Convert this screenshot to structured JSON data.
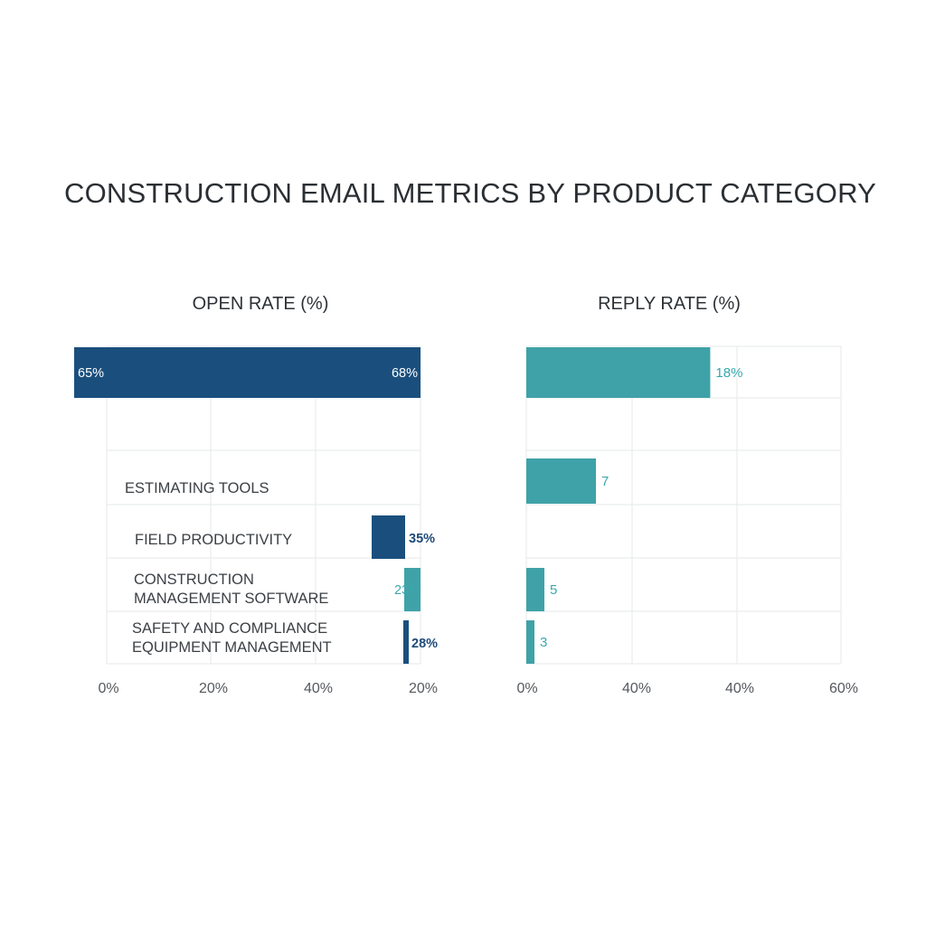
{
  "chart_data": {
    "title": "CONSTRUCTION EMAIL METRICS BY PRODUCT CATEGORY",
    "colors": {
      "open_bar": "#1a4f7d",
      "reply_bar": "#3fa2a8",
      "open_label": "#1e4a78",
      "reply_label": "#3aa8ad"
    },
    "panels": [
      {
        "type": "bar",
        "orientation": "horizontal",
        "title": "OPEN RATE (%)",
        "xlim": [
          0,
          20
        ],
        "x_tick_labels": [
          "0%",
          "20%",
          "40%",
          "20%"
        ],
        "category_labels": [
          "ESTIMATING TOOLS",
          "FIELD PRODUCTIVITY",
          [
            "CONSTRUCTION",
            "MANAGEMENT SOFTWARE"
          ],
          [
            "SAFETY AND COMPLIANCE",
            "EQUIPMENT MANAGEMENT"
          ]
        ],
        "bars": [
          {
            "value": 20,
            "start": -2,
            "label_left": "65%",
            "label_right": "68%",
            "label_inside": true
          },
          {
            "value": 20,
            "start": 20,
            "label_right": ""
          },
          {
            "value": 20,
            "start": 20,
            "label_right": ""
          },
          {
            "value": 17,
            "start": 15.9,
            "label_right": "35%",
            "label_inside": false
          },
          {
            "value": 20,
            "start": 17.1,
            "label_right": "23%",
            "label_inside": false,
            "teal": true
          },
          {
            "value": 17.6,
            "start": 17.2,
            "label_right": "28%",
            "label_inside": false
          }
        ]
      },
      {
        "type": "bar",
        "orientation": "horizontal",
        "title": "REPLY RATE (%)",
        "xlim": [
          0,
          60
        ],
        "x_tick_labels": [
          "0%",
          "40%",
          "40%",
          "60%"
        ],
        "bars": [
          {
            "value": 18,
            "label_right": "18%"
          },
          {
            "value": 0,
            "label_right": ""
          },
          {
            "value": 7,
            "label_right": "7"
          },
          {
            "value": 0,
            "label_right": ""
          },
          {
            "value": 5,
            "label_right": "5"
          },
          {
            "value": 3,
            "label_right": "3"
          }
        ]
      }
    ]
  }
}
